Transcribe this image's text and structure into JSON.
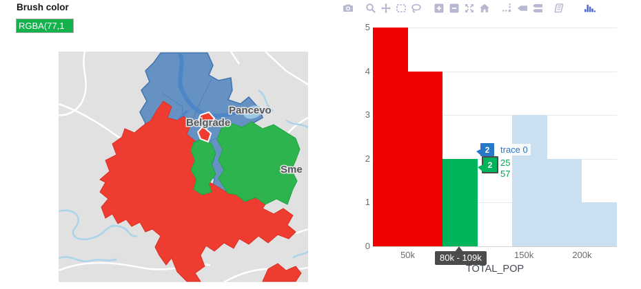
{
  "brush": {
    "label": "Brush color",
    "value": "RGBA(77,1",
    "swatch_color": "#14b24c"
  },
  "map": {
    "labels": {
      "city_ne": "Pancevo",
      "city_center": "Belgrade",
      "city_se": "Sme"
    },
    "colors": {
      "basemap": "#e1e1e1",
      "road": "#ffffff",
      "water": "#a9d4e9",
      "river_main": "#4c86c6",
      "region_blue": "#6592c3",
      "region_blue_border": "#3e74b3",
      "region_red": "#ee3c31",
      "region_green": "#2db44e",
      "city_label": "#54585e"
    }
  },
  "toolbar": {
    "icon_color": "#b8b8d1",
    "logo_color": "#4e6bd4",
    "icons": [
      "camera",
      "zoom",
      "pan",
      "box-select",
      "lasso-select",
      "zoom-in",
      "zoom-out",
      "autoscale",
      "reset-axes",
      "toggle-spikelines",
      "hover-closest",
      "hover-compare",
      "notebook",
      "plotly-logo"
    ]
  },
  "chart_data": {
    "type": "bar",
    "subtype": "histogram",
    "title": "",
    "xlabel": "TOTAL_POP",
    "ylabel": "",
    "xlim": [
      20000,
      230000
    ],
    "ylim": [
      0,
      5
    ],
    "bin_width": 30000,
    "grid": true,
    "legend_position": "none",
    "series": [
      {
        "name": "selected-red",
        "color": "#f10000",
        "bins": [
          {
            "start": 20000,
            "end": 50000,
            "count": 5
          },
          {
            "start": 50000,
            "end": 80000,
            "count": 4
          }
        ]
      },
      {
        "name": "brushed-green",
        "color": "#00b45b",
        "bins": [
          {
            "start": 80000,
            "end": 110000,
            "count": 2
          }
        ]
      },
      {
        "name": "unselected-lightblue",
        "color": "#cadff0",
        "bins": [
          {
            "start": 140000,
            "end": 170000,
            "count": 3
          },
          {
            "start": 170000,
            "end": 200000,
            "count": 2
          },
          {
            "start": 200000,
            "end": 230000,
            "count": 1
          }
        ]
      }
    ],
    "x_ticks": [
      {
        "value": 50000,
        "label": "50k"
      },
      {
        "value": 100000,
        "label": "100k"
      },
      {
        "value": 150000,
        "label": "150k"
      },
      {
        "value": 200000,
        "label": "200k"
      }
    ],
    "y_ticks": [
      {
        "value": 0,
        "label": "0"
      },
      {
        "value": 1,
        "label": "1"
      },
      {
        "value": 2,
        "label": "2"
      },
      {
        "value": 3,
        "label": "3"
      },
      {
        "value": 4,
        "label": "4"
      },
      {
        "value": 5,
        "label": "5"
      }
    ]
  },
  "tooltips": {
    "blue_hover": {
      "count": "2",
      "label": "trace 0",
      "color": "#2878c8"
    },
    "green_hover": {
      "count": "2",
      "line1": "25",
      "line2": "57",
      "color": "#00b45b"
    },
    "x_axis_hover": {
      "label": "80k - 109k",
      "bg": "#4b4b4b"
    }
  }
}
